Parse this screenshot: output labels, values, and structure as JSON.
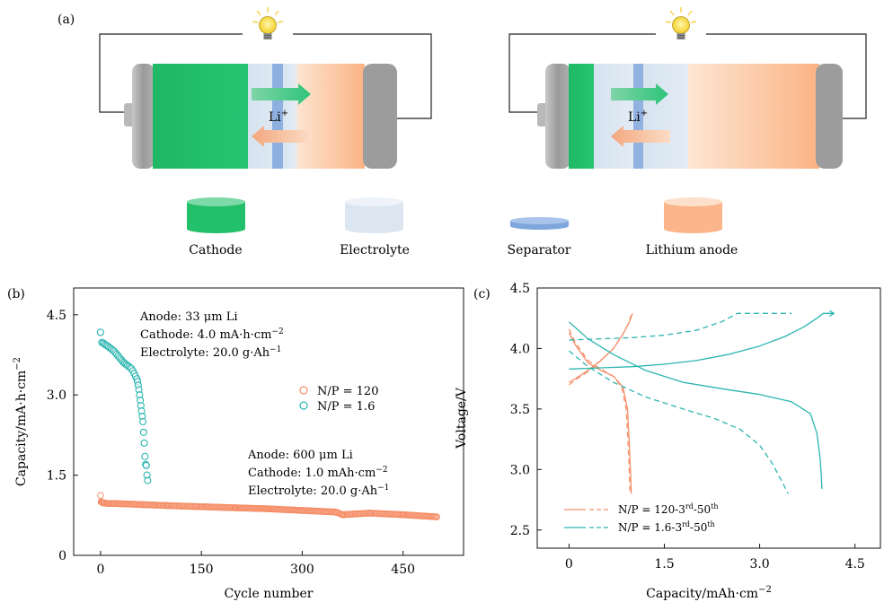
{
  "panel_a": {
    "label": "(a)",
    "ion_label": "Li",
    "ion_charge": "+",
    "legend": [
      "Cathode",
      "Electrolyte",
      "Separator",
      "Lithium anode"
    ],
    "colors": {
      "cathode": "#22c06a",
      "electrolyte": "#dbe6f1",
      "separator": "#7fa6dc",
      "anode": "#fbb58a",
      "cap": "#a6a6a6",
      "bulb": "#f7dc2a"
    },
    "icons": [
      "light-bulb-icon",
      "arrow-right-icon",
      "arrow-left-icon"
    ]
  },
  "chart_data": [
    {
      "type": "scatter",
      "label": "(b)",
      "xlabel": "Cycle number",
      "ylabel": "Capacity/mA·h·cm",
      "ylabel_sup": "−2",
      "xlim": [
        -40,
        540
      ],
      "ylim": [
        0,
        5.0
      ],
      "xticks": [
        0,
        150,
        300,
        450
      ],
      "yticks": [
        0,
        1.5,
        3.0,
        4.5
      ],
      "ytick_labels": [
        "0",
        "1.5",
        "3.0",
        "4.5"
      ],
      "legend": [
        {
          "name": "N/P = 120",
          "color": "#f5906a"
        },
        {
          "name": "N/P = 1.6",
          "color": "#2bb5b0"
        }
      ],
      "annotations": [
        {
          "lines": [
            "Anode: 33 μm Li",
            "Cathode: 4.0 mA·h·cm",
            "Electrolyte: 20.0 g·Ah"
          ],
          "sups": [
            "",
            "−2",
            "−1"
          ]
        },
        {
          "lines": [
            "Anode: 600 μm Li",
            "Cathode: 1.0 mAh·cm",
            "Electrolyte: 20.0 g·Ah"
          ],
          "sups": [
            "",
            "−2",
            "−1"
          ]
        }
      ],
      "series": [
        {
          "name": "N/P = 120",
          "color": "#f5906a",
          "x": [
            0,
            1,
            2,
            4,
            6,
            10,
            20,
            40,
            60,
            80,
            100,
            150,
            200,
            250,
            300,
            350,
            360,
            400,
            450,
            500
          ],
          "y": [
            1.12,
            1.0,
            0.99,
            0.98,
            0.98,
            0.97,
            0.97,
            0.96,
            0.95,
            0.94,
            0.93,
            0.91,
            0.89,
            0.87,
            0.84,
            0.81,
            0.76,
            0.79,
            0.76,
            0.72
          ]
        },
        {
          "name": "N/P = 1.6",
          "color": "#2bb5b0",
          "x": [
            0,
            2,
            4,
            6,
            8,
            10,
            12,
            14,
            16,
            18,
            20,
            22,
            24,
            26,
            28,
            30,
            32,
            34,
            36,
            38,
            40,
            42,
            44,
            46,
            48,
            50,
            52,
            54,
            55,
            56,
            57,
            58,
            59,
            60,
            61,
            62,
            63,
            64,
            65,
            66,
            67,
            68,
            69,
            70
          ],
          "y": [
            4.17,
            3.98,
            3.97,
            3.95,
            3.93,
            3.92,
            3.9,
            3.88,
            3.86,
            3.84,
            3.82,
            3.79,
            3.76,
            3.73,
            3.7,
            3.67,
            3.64,
            3.61,
            3.59,
            3.57,
            3.55,
            3.53,
            3.51,
            3.49,
            3.45,
            3.4,
            3.35,
            3.3,
            3.25,
            3.18,
            3.1,
            3.0,
            2.9,
            2.8,
            2.7,
            2.6,
            2.5,
            2.3,
            2.1,
            1.85,
            1.7,
            1.68,
            1.5,
            1.4
          ]
        }
      ]
    },
    {
      "type": "line",
      "label": "(c)",
      "xlabel": "Capacity/mAh·cm",
      "xlabel_sup": "−2",
      "ylabel": "Voltage/V",
      "xlim": [
        -0.5,
        4.9
      ],
      "ylim": [
        2.35,
        4.5
      ],
      "xticks": [
        0,
        1.5,
        3.0,
        4.5
      ],
      "xtick_labels": [
        "0",
        "1.5",
        "3.0",
        "4.5"
      ],
      "yticks": [
        2.5,
        3.0,
        3.5,
        4.0,
        4.5
      ],
      "ytick_labels": [
        "2.5",
        "3.0",
        "3.5",
        "4.0",
        "4.5"
      ],
      "legend": [
        {
          "name": "N/P = 120-3",
          "sup1": "rd",
          "mid": "-50",
          "sup2": "th",
          "color": "#f5906a"
        },
        {
          "name": "N/P = 1.6-3",
          "sup1": "rd",
          "mid": "-50",
          "sup2": "th",
          "color": "#2bb5b0"
        }
      ],
      "series": [
        {
          "name": "N/P=120 3rd discharge",
          "color": "#f5906a",
          "dash": false,
          "x": [
            0.0,
            0.1,
            0.3,
            0.5,
            0.7,
            0.85,
            0.92,
            0.95,
            0.97,
            0.98
          ],
          "y": [
            4.13,
            4.03,
            3.88,
            3.82,
            3.77,
            3.68,
            3.5,
            3.2,
            2.95,
            2.8
          ]
        },
        {
          "name": "N/P=120 3rd charge",
          "color": "#f5906a",
          "dash": false,
          "x": [
            0.0,
            0.1,
            0.3,
            0.5,
            0.7,
            0.85,
            0.95,
            1.0
          ],
          "y": [
            3.72,
            3.75,
            3.82,
            3.9,
            4.0,
            4.12,
            4.22,
            4.29
          ]
        },
        {
          "name": "N/P=120 50th discharge",
          "color": "#f5906a",
          "dash": true,
          "x": [
            0.0,
            0.1,
            0.3,
            0.5,
            0.7,
            0.83,
            0.9,
            0.93,
            0.95,
            0.96
          ],
          "y": [
            4.16,
            4.05,
            3.9,
            3.83,
            3.77,
            3.68,
            3.5,
            3.2,
            2.95,
            2.8
          ]
        },
        {
          "name": "N/P=120 50th charge",
          "color": "#f5906a",
          "dash": true,
          "x": [
            0.0,
            0.1,
            0.3,
            0.5,
            0.7,
            0.85,
            0.95,
            0.98
          ],
          "y": [
            3.7,
            3.74,
            3.81,
            3.9,
            4.0,
            4.12,
            4.22,
            4.29
          ]
        },
        {
          "name": "N/P=1.6 3rd charge",
          "color": "#2bb5b0",
          "dash": false,
          "x": [
            0.0,
            0.5,
            1.0,
            1.5,
            2.0,
            2.5,
            3.0,
            3.4,
            3.7,
            3.9,
            4.0,
            4.1,
            4.17
          ],
          "y": [
            3.83,
            3.84,
            3.85,
            3.87,
            3.9,
            3.95,
            4.02,
            4.1,
            4.18,
            4.25,
            4.29,
            4.29,
            4.29
          ]
        },
        {
          "name": "N/P=1.6 3rd discharge",
          "color": "#2bb5b0",
          "dash": false,
          "x": [
            0.0,
            0.3,
            0.7,
            1.2,
            1.8,
            2.5,
            3.0,
            3.5,
            3.8,
            3.9,
            3.95,
            3.97,
            3.98
          ],
          "y": [
            4.22,
            4.08,
            3.95,
            3.82,
            3.72,
            3.66,
            3.62,
            3.56,
            3.46,
            3.3,
            3.1,
            2.95,
            2.84
          ]
        },
        {
          "name": "N/P=1.6 50th charge",
          "color": "#2bb5b0",
          "dash": true,
          "x": [
            0.0,
            0.5,
            1.0,
            1.5,
            2.0,
            2.4,
            2.65,
            2.8,
            3.0,
            3.3,
            3.5
          ],
          "y": [
            4.07,
            4.08,
            4.09,
            4.11,
            4.15,
            4.22,
            4.29,
            4.29,
            4.29,
            4.29,
            4.29
          ]
        },
        {
          "name": "N/P=1.6 50th discharge",
          "color": "#2bb5b0",
          "dash": true,
          "x": [
            0.0,
            0.3,
            0.7,
            1.2,
            1.8,
            2.3,
            2.7,
            3.0,
            3.2,
            3.35,
            3.45
          ],
          "y": [
            3.98,
            3.85,
            3.72,
            3.6,
            3.5,
            3.42,
            3.33,
            3.2,
            3.05,
            2.9,
            2.8
          ]
        }
      ]
    }
  ]
}
